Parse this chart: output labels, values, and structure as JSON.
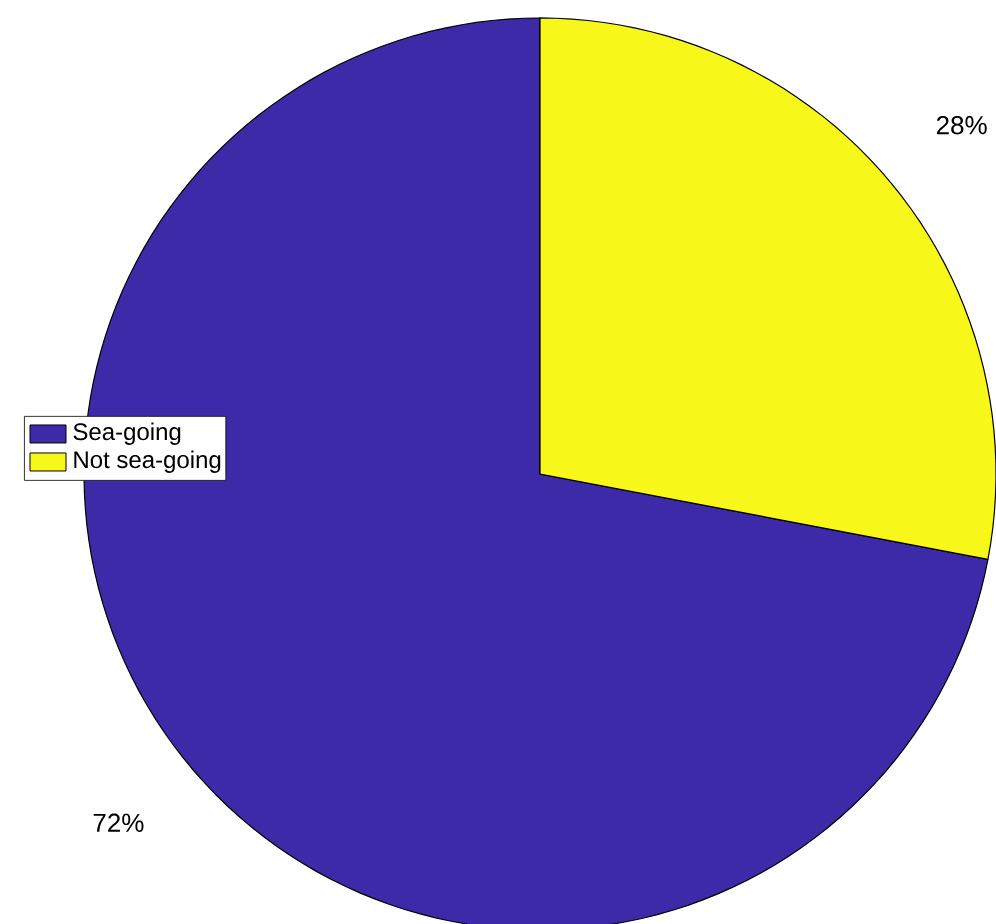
{
  "chart_data": {
    "type": "pie",
    "categories": [
      "Sea-going",
      "Not sea-going"
    ],
    "values": [
      72,
      28
    ],
    "value_labels": [
      "72%",
      "28%"
    ],
    "data_labels": true,
    "colors": [
      "#3d2aa8",
      "#f7f71a"
    ],
    "legend": "left"
  }
}
